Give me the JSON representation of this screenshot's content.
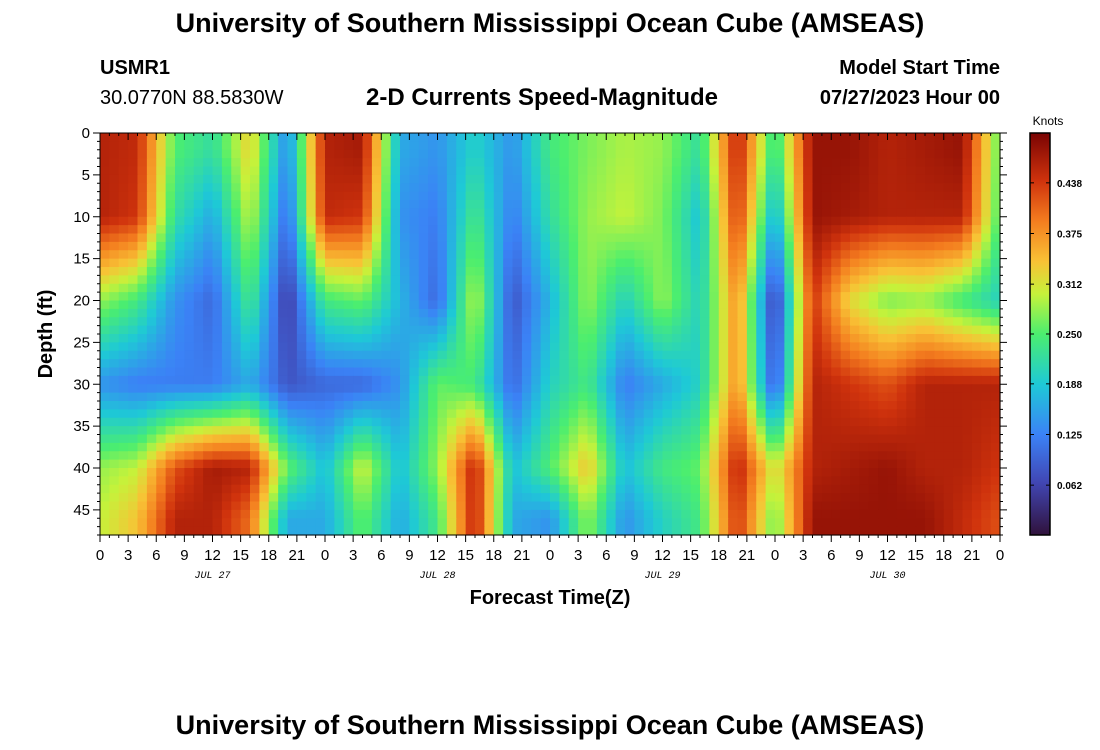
{
  "header": {
    "title": "University of Southern Mississippi Ocean Cube (AMSEAS)",
    "station_id": "USMR1",
    "coordinates": "30.0770N  88.5830W",
    "subtitle": "2-D Currents Speed-Magnitude",
    "model_start_label": "Model Start Time",
    "model_start_value": "07/27/2023 Hour 00"
  },
  "footer": {
    "title": "University of Southern Mississippi Ocean Cube (AMSEAS)"
  },
  "chart_data": {
    "type": "heatmap",
    "title": "2-D Currents Speed-Magnitude",
    "xlabel": "Forecast Time(Z)",
    "ylabel": "Depth (ft)",
    "xlim": [
      0,
      96
    ],
    "ylim": [
      0,
      48
    ],
    "x_tick_labels": [
      "0",
      "3",
      "6",
      "9",
      "12",
      "15",
      "18",
      "21",
      "0",
      "3",
      "6",
      "9",
      "12",
      "15",
      "18",
      "21",
      "0",
      "3",
      "6",
      "9",
      "12",
      "15",
      "18",
      "21",
      "0",
      "3",
      "6",
      "9",
      "12",
      "15",
      "18",
      "21",
      "0"
    ],
    "y_tick_labels": [
      "0",
      "5",
      "10",
      "15",
      "20",
      "25",
      "30",
      "35",
      "40",
      "45"
    ],
    "day_labels": [
      "JUL 27",
      "JUL 28",
      "JUL 29",
      "JUL 30"
    ],
    "colorbar": {
      "label": "Knots",
      "range": [
        0,
        0.5
      ],
      "tick_labels": [
        "0.438",
        "0.375",
        "0.312",
        "0.250",
        "0.188",
        "0.125",
        "0.062"
      ]
    },
    "depth_samples_ft": [
      2,
      10,
      20,
      30,
      40,
      46
    ],
    "time_samples_h": [
      0,
      4,
      8,
      12,
      16,
      20,
      24,
      28,
      32,
      36,
      40,
      44,
      48,
      52,
      56,
      60,
      64,
      68,
      72,
      76,
      80,
      84,
      88,
      92,
      96
    ],
    "speed_knots": [
      [
        0.46,
        0.45,
        0.25,
        0.22,
        0.33,
        0.13,
        0.46,
        0.47,
        0.16,
        0.14,
        0.2,
        0.14,
        0.24,
        0.27,
        0.29,
        0.28,
        0.22,
        0.46,
        0.22,
        0.48,
        0.48,
        0.46,
        0.47,
        0.48,
        0.25
      ],
      [
        0.46,
        0.44,
        0.22,
        0.16,
        0.3,
        0.1,
        0.45,
        0.44,
        0.14,
        0.12,
        0.24,
        0.12,
        0.22,
        0.28,
        0.3,
        0.27,
        0.18,
        0.44,
        0.16,
        0.48,
        0.47,
        0.46,
        0.46,
        0.46,
        0.24
      ],
      [
        0.28,
        0.24,
        0.14,
        0.1,
        0.24,
        0.05,
        0.24,
        0.26,
        0.17,
        0.1,
        0.3,
        0.08,
        0.17,
        0.28,
        0.2,
        0.28,
        0.2,
        0.38,
        0.05,
        0.44,
        0.32,
        0.27,
        0.28,
        0.24,
        0.2
      ],
      [
        0.14,
        0.12,
        0.12,
        0.12,
        0.16,
        0.08,
        0.1,
        0.1,
        0.14,
        0.26,
        0.24,
        0.1,
        0.2,
        0.24,
        0.12,
        0.16,
        0.2,
        0.38,
        0.08,
        0.46,
        0.44,
        0.42,
        0.46,
        0.46,
        0.46
      ],
      [
        0.28,
        0.3,
        0.42,
        0.47,
        0.46,
        0.26,
        0.18,
        0.31,
        0.18,
        0.28,
        0.46,
        0.18,
        0.25,
        0.34,
        0.18,
        0.24,
        0.26,
        0.46,
        0.3,
        0.46,
        0.47,
        0.48,
        0.46,
        0.46,
        0.44
      ],
      [
        0.3,
        0.34,
        0.46,
        0.46,
        0.4,
        0.16,
        0.16,
        0.26,
        0.16,
        0.24,
        0.46,
        0.16,
        0.14,
        0.28,
        0.14,
        0.2,
        0.24,
        0.44,
        0.26,
        0.48,
        0.48,
        0.48,
        0.48,
        0.45,
        0.42
      ]
    ]
  }
}
